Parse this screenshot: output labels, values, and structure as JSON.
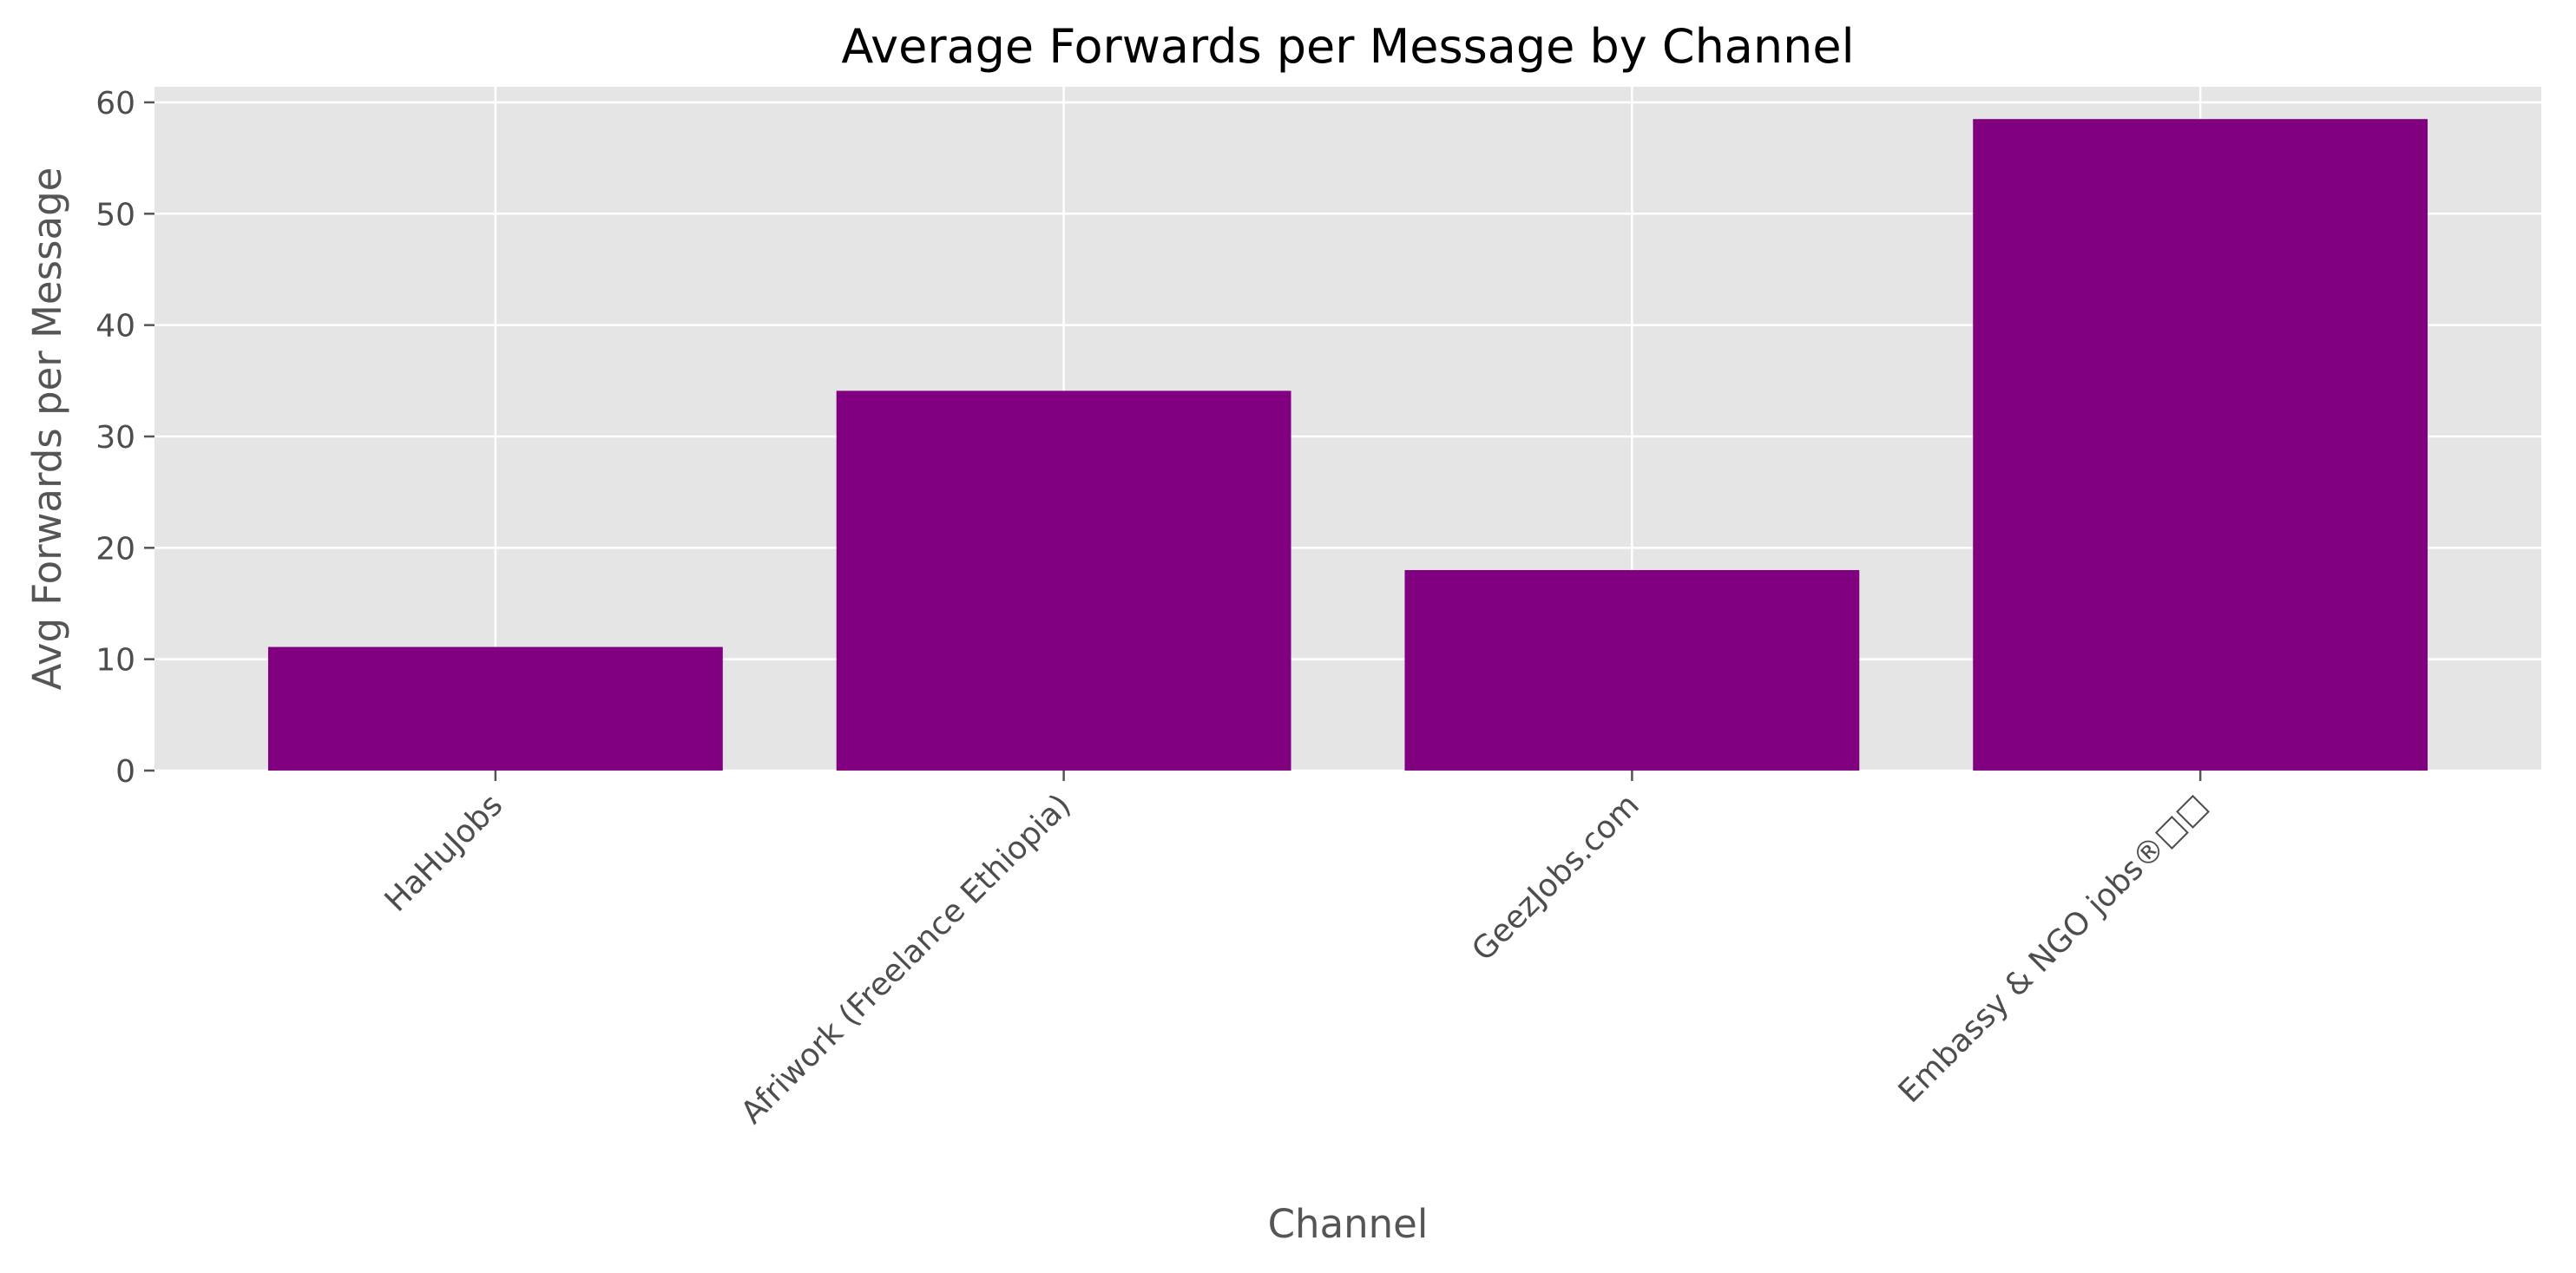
{
  "chart_data": {
    "type": "bar",
    "title": "Average Forwards per Message by Channel",
    "xlabel": "Channel",
    "ylabel": "Avg Forwards per Message",
    "categories": [
      "HaHuJobs",
      "Afriwork (Freelance Ethiopia)",
      "GeezJobs.com",
      "Embassy & NGO jobs®□□"
    ],
    "values": [
      11.1,
      34.1,
      18.0,
      58.5
    ],
    "ylim": [
      0,
      61.4
    ],
    "yticks": [
      0,
      10,
      20,
      30,
      40,
      50,
      60
    ],
    "grid": true,
    "legend": "none",
    "style": "ggplot",
    "colors": {
      "bar": "#800080",
      "plot_background": "#e5e5e5",
      "grid": "#ffffff",
      "tick": "#555555"
    }
  }
}
